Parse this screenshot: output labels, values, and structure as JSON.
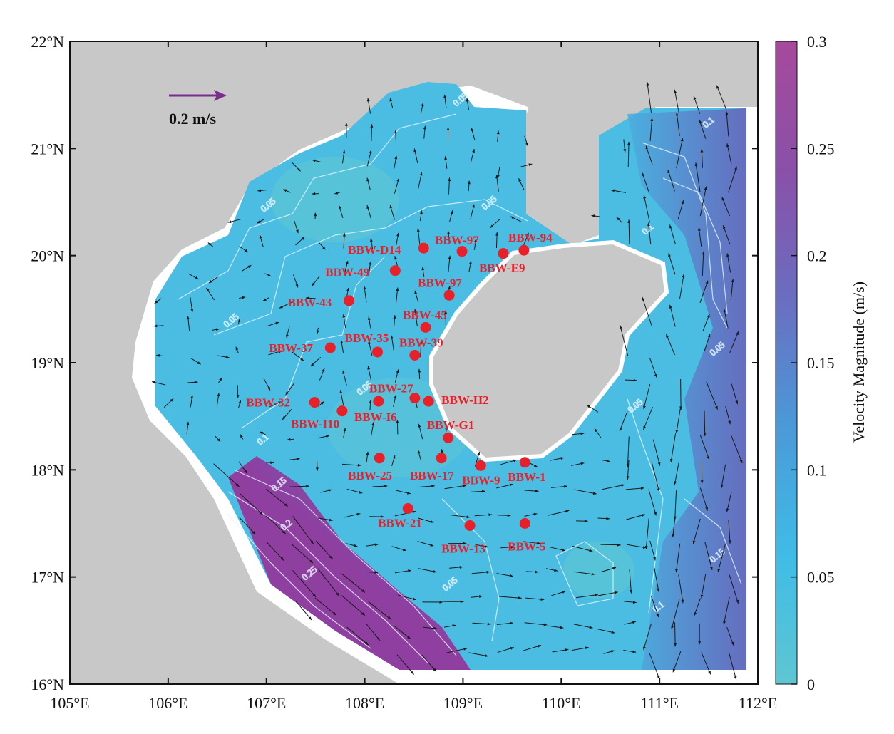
{
  "map": {
    "extent": {
      "lon": [
        105,
        112
      ],
      "lat": [
        16,
        22
      ]
    },
    "x_ticks": [
      "105°E",
      "106°E",
      "107°E",
      "108°E",
      "109°E",
      "110°E",
      "111°E",
      "112°E"
    ],
    "y_ticks": [
      "22°N",
      "21°N",
      "20°N",
      "19°N",
      "18°N",
      "17°N",
      "16°N"
    ],
    "scale_arrow": {
      "label": "0.2 m/s",
      "color": "#7b2d8e"
    },
    "land_color": "#c8c8c8",
    "contour_labels": [
      "0.05",
      "0.1",
      "0.15",
      "0.2",
      "0.25"
    ],
    "stations": [
      {
        "name": "BBW-D14",
        "lon": 108.6,
        "lat": 20.07
      },
      {
        "name": "BBW-97",
        "lon": 108.99,
        "lat": 20.04
      },
      {
        "name": "BBW-E9",
        "lon": 109.41,
        "lat": 20.02
      },
      {
        "name": "BBW-94",
        "lon": 109.62,
        "lat": 20.05
      },
      {
        "name": "BBW-49",
        "lon": 108.31,
        "lat": 19.86
      },
      {
        "name": "BBW-97",
        "lon": 108.86,
        "lat": 19.63
      },
      {
        "name": "BBW-43",
        "lon": 107.84,
        "lat": 19.58
      },
      {
        "name": "BBW-45",
        "lon": 108.62,
        "lat": 19.33
      },
      {
        "name": "BBW-35",
        "lon": 108.13,
        "lat": 19.1
      },
      {
        "name": "BBW-39",
        "lon": 108.51,
        "lat": 19.07
      },
      {
        "name": "BBW-37",
        "lon": 107.65,
        "lat": 19.14
      },
      {
        "name": "BBW-32",
        "lon": 107.49,
        "lat": 18.63
      },
      {
        "name": "BBW-I10",
        "lon": 107.77,
        "lat": 18.55
      },
      {
        "name": "BBW-I6",
        "lon": 108.14,
        "lat": 18.64
      },
      {
        "name": "BBW-27",
        "lon": 108.51,
        "lat": 18.67
      },
      {
        "name": "BBW-H2",
        "lon": 108.65,
        "lat": 18.64
      },
      {
        "name": "BBW-G1",
        "lon": 108.85,
        "lat": 18.3
      },
      {
        "name": "BBW-25",
        "lon": 108.15,
        "lat": 18.11
      },
      {
        "name": "BBW-17",
        "lon": 108.78,
        "lat": 18.11
      },
      {
        "name": "BBW-9",
        "lon": 109.18,
        "lat": 18.04
      },
      {
        "name": "BBW-1",
        "lon": 109.63,
        "lat": 18.07
      },
      {
        "name": "BBW-21",
        "lon": 108.44,
        "lat": 17.64
      },
      {
        "name": "BBW-13",
        "lon": 109.07,
        "lat": 17.48
      },
      {
        "name": "BBW-5",
        "lon": 109.63,
        "lat": 17.5
      }
    ],
    "station_color": "#e8202a"
  },
  "colorbar": {
    "label": "Velocity Magnitude (m/s)",
    "ticks": [
      "0",
      "0.05",
      "0.1",
      "0.15",
      "0.2",
      "0.25",
      "0.3"
    ],
    "range": [
      0,
      0.3
    ],
    "colors": [
      "#5ec6d2",
      "#3fb8e6",
      "#4a9ad8",
      "#6a6ec0",
      "#8a50a8",
      "#a0489a"
    ]
  }
}
